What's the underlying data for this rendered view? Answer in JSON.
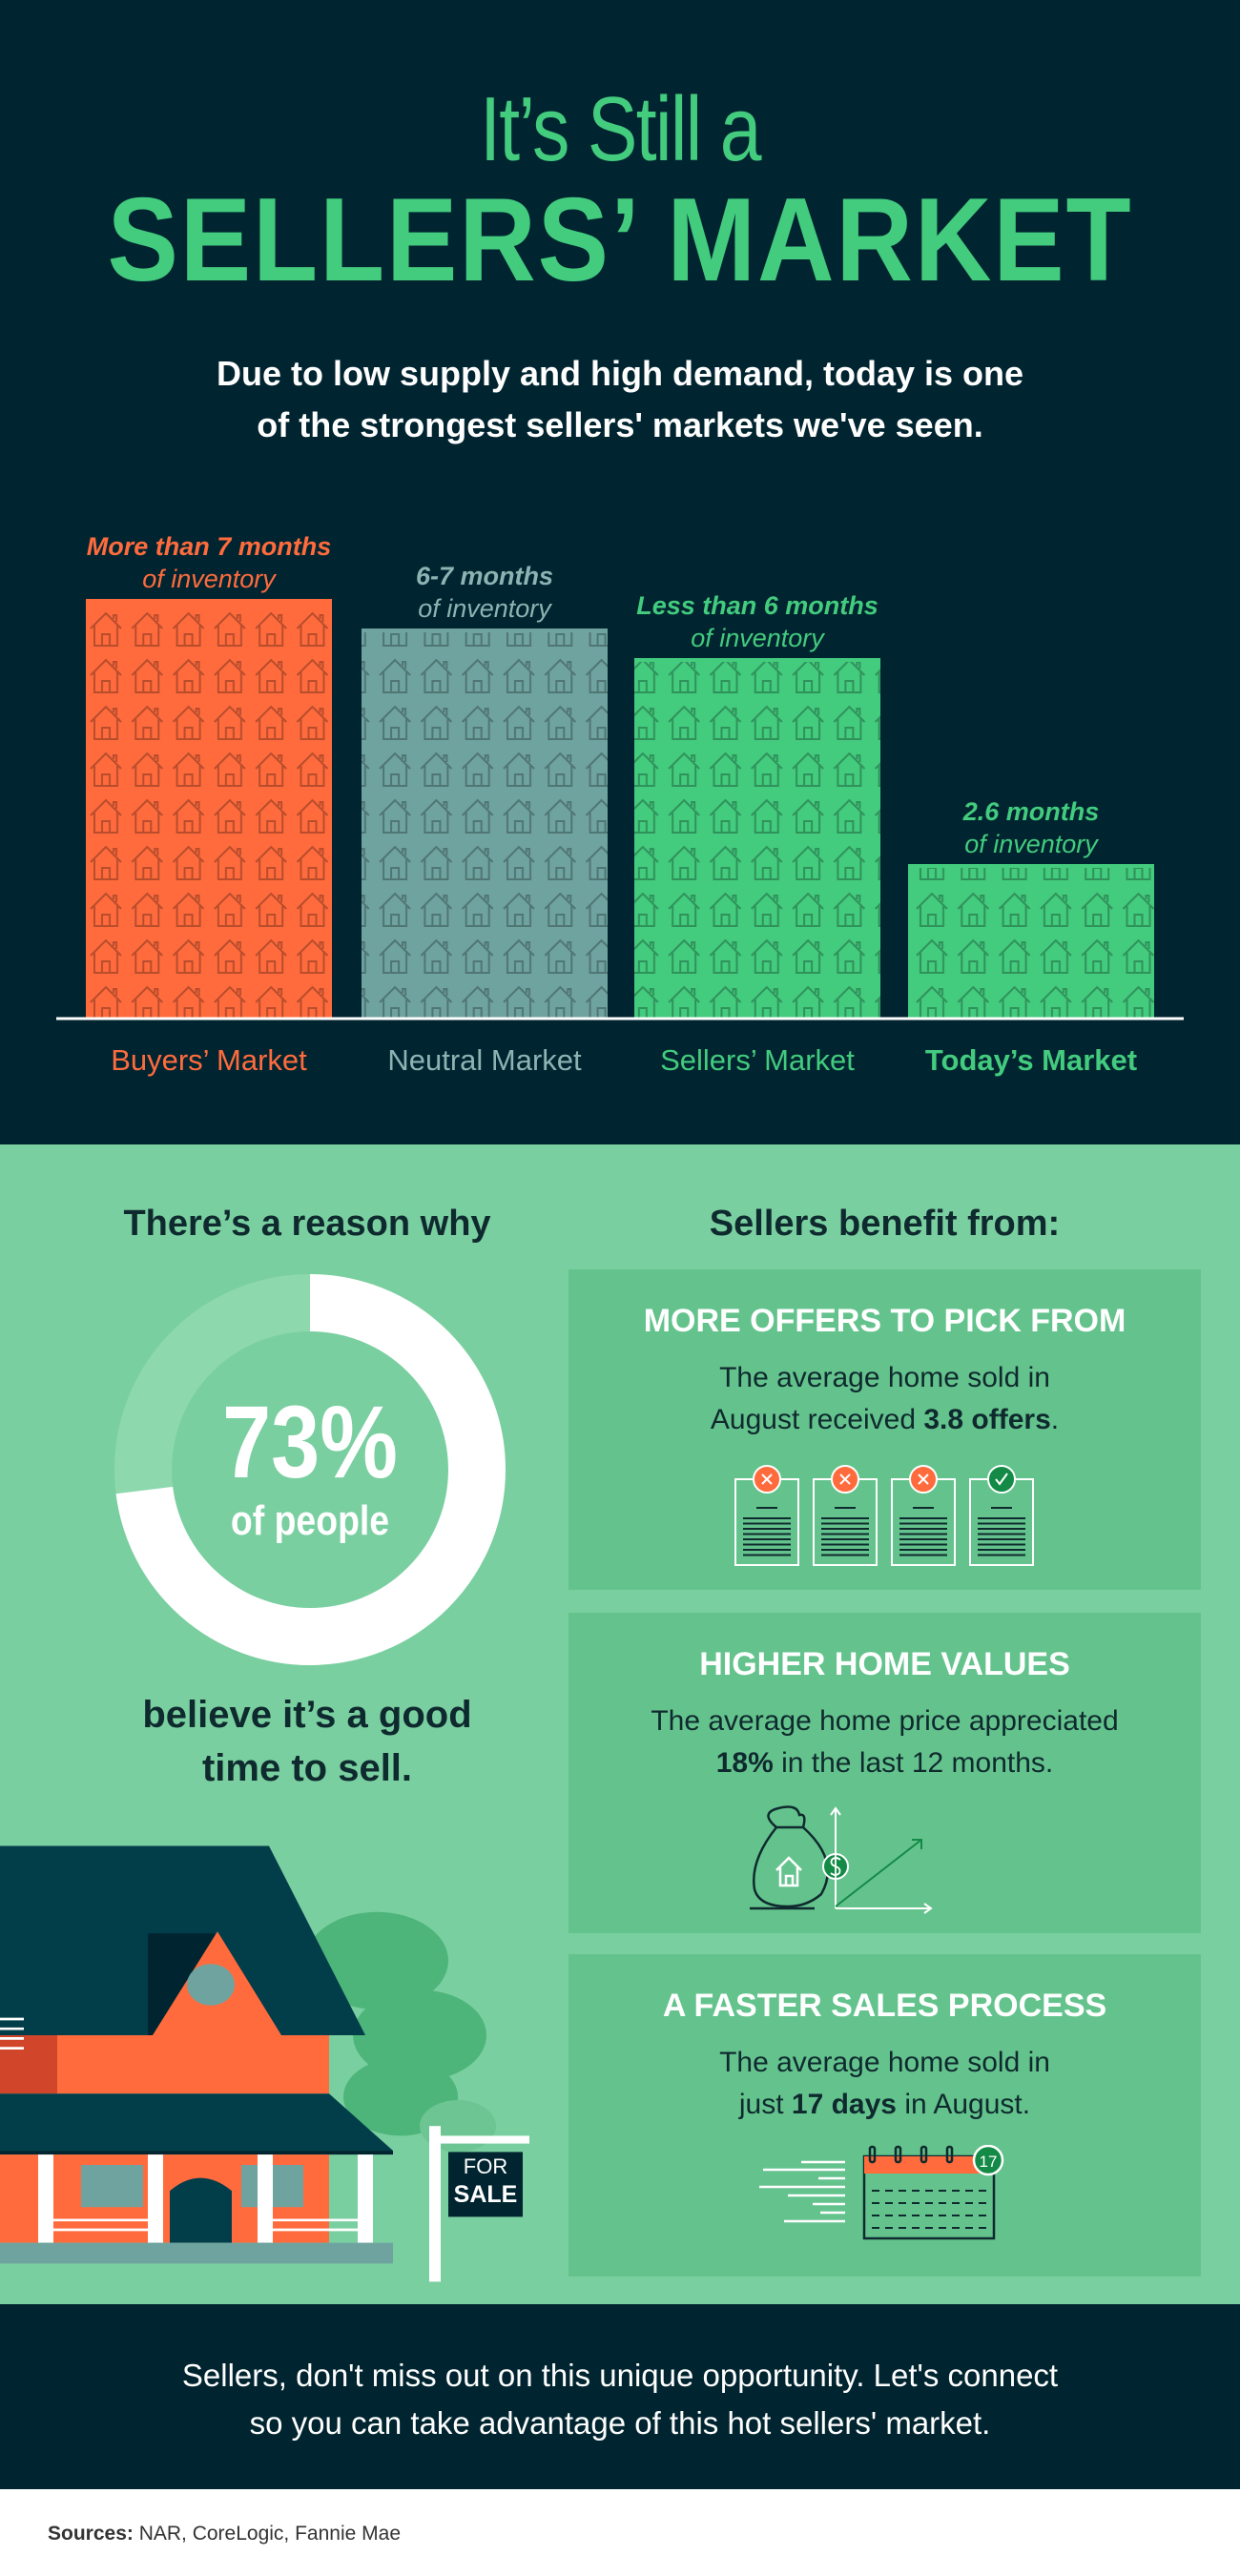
{
  "header": {
    "title_line1": "It’s Still a",
    "title_line2": "SELLERS’ MARKET",
    "subtitle_line1": "Due to low supply and high demand, today is one",
    "subtitle_line2": "of the strongest sellers' markets we've seen."
  },
  "chart_data": {
    "type": "bar",
    "categories": [
      "Buyers’ Market",
      "Neutral Market",
      "Sellers’ Market",
      "Today’s Market"
    ],
    "bar_labels": [
      {
        "line1": "More than 7 months",
        "line2": "of inventory"
      },
      {
        "line1": "6-7 months",
        "line2": "of inventory"
      },
      {
        "line1": "Less than 6 months",
        "line2": "of inventory"
      },
      {
        "line1": "2.6 months",
        "line2": "of inventory"
      }
    ],
    "colors": [
      "#FF6B3D",
      "#6FA3A0",
      "#43CB7E",
      "#43CB7E"
    ],
    "label_colors": [
      "#FF6B3D",
      "#8FB3B2",
      "#43CB7E",
      "#43CB7E"
    ],
    "pattern_icon": "house-icon"
  },
  "reason": {
    "heading": "There’s a reason why",
    "percent": "73%",
    "percent_value": 73,
    "percent_sub": "of people",
    "caption_line1": "believe it’s a good",
    "caption_line2": "time to sell."
  },
  "benefits": {
    "heading": "Sellers benefit from:",
    "cards": [
      {
        "title": "MORE OFFERS TO PICK FROM",
        "line1": "The average home sold in",
        "line2_pre": "August received ",
        "line2_bold": "3.8 offers",
        "line2_post": ".",
        "icon": "offer-documents-icon"
      },
      {
        "title": "HIGHER HOME VALUES",
        "line1": "The average home price appreciated",
        "line2_pre": "",
        "line2_bold": "18%",
        "line2_post": " in the last 12 months.",
        "icon": "money-bag-growth-chart-icon"
      },
      {
        "title": "A FASTER SALES PROCESS",
        "line1": "The average home sold in",
        "line2_pre": "just ",
        "line2_bold": "17 days",
        "line2_post": " in August.",
        "icon": "calendar-icon",
        "calendar_badge": "17"
      }
    ]
  },
  "sign": {
    "line1": "FOR",
    "line2": "SALE"
  },
  "footer": {
    "cta_line1": "Sellers, don't miss out on this unique opportunity. Let's connect",
    "cta_line2": "so you can take advantage of this hot sellers' market."
  },
  "sources": {
    "label": "Sources:",
    "text": " NAR, CoreLogic, Fannie Mae"
  }
}
